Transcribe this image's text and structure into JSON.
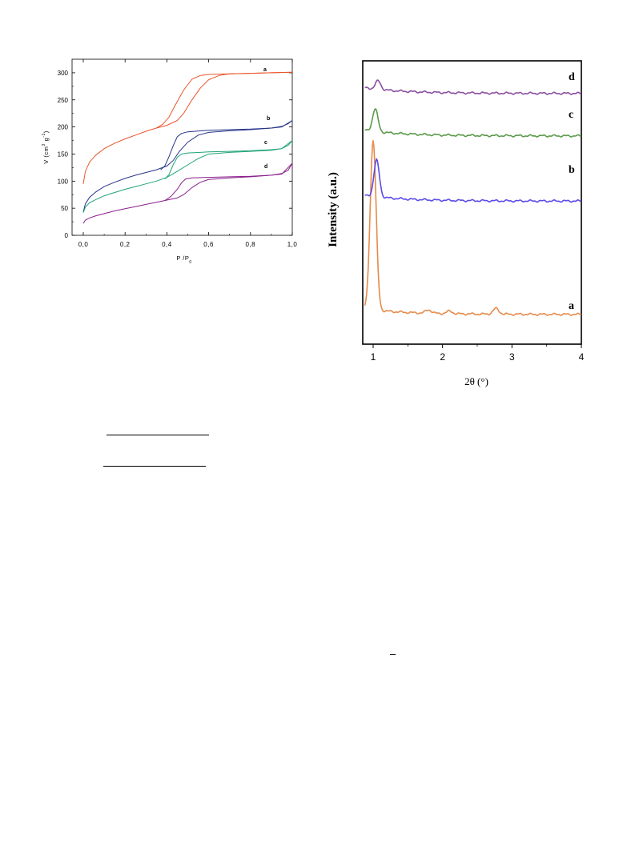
{
  "chart_data": [
    {
      "type": "line",
      "xlabel": "P /P",
      "xlabel_sub": "0",
      "ylabel": "V (cm",
      "ylabel_sup1": "3",
      "ylabel_mid": "g",
      "ylabel_sup2": "-1",
      "ylabel_end": ")",
      "xlim": [
        -0.05,
        1.0
      ],
      "ylim": [
        0,
        325
      ],
      "xticks": [
        "0,0",
        "0,2",
        "0,4",
        "0,6",
        "0,8",
        "1,0"
      ],
      "yticks": [
        "0",
        "50",
        "100",
        "150",
        "200",
        "250",
        "300"
      ],
      "series": [
        {
          "name": "a",
          "color": "#e8542a",
          "adsorption": [
            [
              0,
              95
            ],
            [
              0.01,
              118
            ],
            [
              0.03,
              135
            ],
            [
              0.06,
              148
            ],
            [
              0.1,
              160
            ],
            [
              0.15,
              170
            ],
            [
              0.2,
              178
            ],
            [
              0.25,
              185
            ],
            [
              0.3,
              192
            ],
            [
              0.35,
              198
            ],
            [
              0.4,
              203
            ],
            [
              0.45,
              212
            ],
            [
              0.48,
              225
            ],
            [
              0.52,
              250
            ],
            [
              0.56,
              272
            ],
            [
              0.6,
              287
            ],
            [
              0.65,
              295
            ],
            [
              0.7,
              298
            ],
            [
              0.8,
              299
            ],
            [
              0.9,
              300
            ],
            [
              1.0,
              301
            ]
          ],
          "desorption": [
            [
              1.0,
              301
            ],
            [
              0.9,
              300
            ],
            [
              0.8,
              299
            ],
            [
              0.7,
              298
            ],
            [
              0.6,
              297
            ],
            [
              0.56,
              295
            ],
            [
              0.52,
              288
            ],
            [
              0.48,
              268
            ],
            [
              0.44,
              240
            ],
            [
              0.41,
              218
            ],
            [
              0.38,
              205
            ],
            [
              0.35,
              198
            ]
          ]
        },
        {
          "name": "b",
          "color": "#27348b",
          "adsorption": [
            [
              0,
              43
            ],
            [
              0.01,
              58
            ],
            [
              0.03,
              70
            ],
            [
              0.06,
              80
            ],
            [
              0.1,
              90
            ],
            [
              0.15,
              98
            ],
            [
              0.2,
              105
            ],
            [
              0.25,
              111
            ],
            [
              0.3,
              116
            ],
            [
              0.35,
              121
            ],
            [
              0.4,
              128
            ],
            [
              0.43,
              138
            ],
            [
              0.46,
              155
            ],
            [
              0.5,
              172
            ],
            [
              0.55,
              185
            ],
            [
              0.6,
              190
            ],
            [
              0.7,
              193
            ],
            [
              0.8,
              195
            ],
            [
              0.9,
              198
            ],
            [
              0.95,
              201
            ],
            [
              0.98,
              206
            ],
            [
              1.0,
              212
            ]
          ],
          "desorption": [
            [
              1.0,
              212
            ],
            [
              0.95,
              200
            ],
            [
              0.9,
              198
            ],
            [
              0.8,
              196
            ],
            [
              0.7,
              195
            ],
            [
              0.6,
              194
            ],
            [
              0.5,
              191
            ],
            [
              0.47,
              188
            ],
            [
              0.45,
              182
            ],
            [
              0.43,
              165
            ],
            [
              0.41,
              145
            ],
            [
              0.39,
              128
            ],
            [
              0.37,
              121
            ]
          ]
        },
        {
          "name": "c",
          "color": "#1fa37a",
          "adsorption": [
            [
              0,
              42
            ],
            [
              0.01,
              52
            ],
            [
              0.03,
              60
            ],
            [
              0.06,
              66
            ],
            [
              0.1,
              73
            ],
            [
              0.15,
              79
            ],
            [
              0.2,
              85
            ],
            [
              0.25,
              90
            ],
            [
              0.3,
              95
            ],
            [
              0.35,
              100
            ],
            [
              0.4,
              107
            ],
            [
              0.45,
              118
            ],
            [
              0.5,
              130
            ],
            [
              0.55,
              142
            ],
            [
              0.6,
              150
            ],
            [
              0.7,
              153
            ],
            [
              0.8,
              155
            ],
            [
              0.9,
              157
            ],
            [
              0.95,
              160
            ],
            [
              0.98,
              166
            ],
            [
              1.0,
              175
            ]
          ],
          "desorption": [
            [
              1.0,
              175
            ],
            [
              0.95,
              160
            ],
            [
              0.9,
              158
            ],
            [
              0.8,
              156
            ],
            [
              0.7,
              155
            ],
            [
              0.6,
              154
            ],
            [
              0.5,
              152
            ],
            [
              0.47,
              150
            ],
            [
              0.45,
              144
            ],
            [
              0.43,
              130
            ],
            [
              0.41,
              112
            ],
            [
              0.39,
              104
            ]
          ]
        },
        {
          "name": "d",
          "color": "#8a1f8c",
          "adsorption": [
            [
              0,
              22
            ],
            [
              0.01,
              28
            ],
            [
              0.03,
              32
            ],
            [
              0.06,
              36
            ],
            [
              0.1,
              40
            ],
            [
              0.15,
              45
            ],
            [
              0.2,
              49
            ],
            [
              0.25,
              53
            ],
            [
              0.3,
              57
            ],
            [
              0.35,
              61
            ],
            [
              0.4,
              65
            ],
            [
              0.45,
              69
            ],
            [
              0.48,
              75
            ],
            [
              0.52,
              88
            ],
            [
              0.56,
              98
            ],
            [
              0.6,
              103
            ],
            [
              0.7,
              106
            ],
            [
              0.8,
              108
            ],
            [
              0.9,
              111
            ],
            [
              0.95,
              114
            ],
            [
              0.98,
              120
            ],
            [
              1.0,
              133
            ]
          ],
          "desorption": [
            [
              1.0,
              133
            ],
            [
              0.95,
              113
            ],
            [
              0.9,
              111
            ],
            [
              0.8,
              109
            ],
            [
              0.7,
              108
            ],
            [
              0.6,
              107
            ],
            [
              0.52,
              106
            ],
            [
              0.49,
              104
            ],
            [
              0.47,
              97
            ],
            [
              0.45,
              85
            ],
            [
              0.42,
              72
            ],
            [
              0.39,
              64
            ]
          ]
        }
      ]
    },
    {
      "type": "line",
      "xlabel": "2θ  (°)",
      "ylabel": "Intensity (a.u.)",
      "xlim": [
        0.85,
        4.0
      ],
      "ylim": [
        0,
        100
      ],
      "xticks": [
        "1",
        "2",
        "3",
        "4"
      ],
      "series": [
        {
          "name": "a",
          "color": "#e58b4a",
          "baseline": 10.5,
          "peak_x": 1.0,
          "peak_height": 60,
          "secondary": [
            [
              1.8,
              1.2
            ],
            [
              2.1,
              0.9
            ],
            [
              2.77,
              2.0
            ]
          ]
        },
        {
          "name": "b",
          "color": "#5a4bea",
          "baseline": 50.5,
          "peak_x": 1.05,
          "peak_height": 13,
          "secondary": []
        },
        {
          "name": "c",
          "color": "#5a9a4a",
          "baseline": 73.5,
          "peak_x": 1.03,
          "peak_height": 8,
          "secondary": []
        },
        {
          "name": "d",
          "color": "#8a4fa0",
          "baseline": 88.5,
          "peak_x": 1.07,
          "peak_height": 3,
          "secondary": []
        }
      ]
    }
  ]
}
